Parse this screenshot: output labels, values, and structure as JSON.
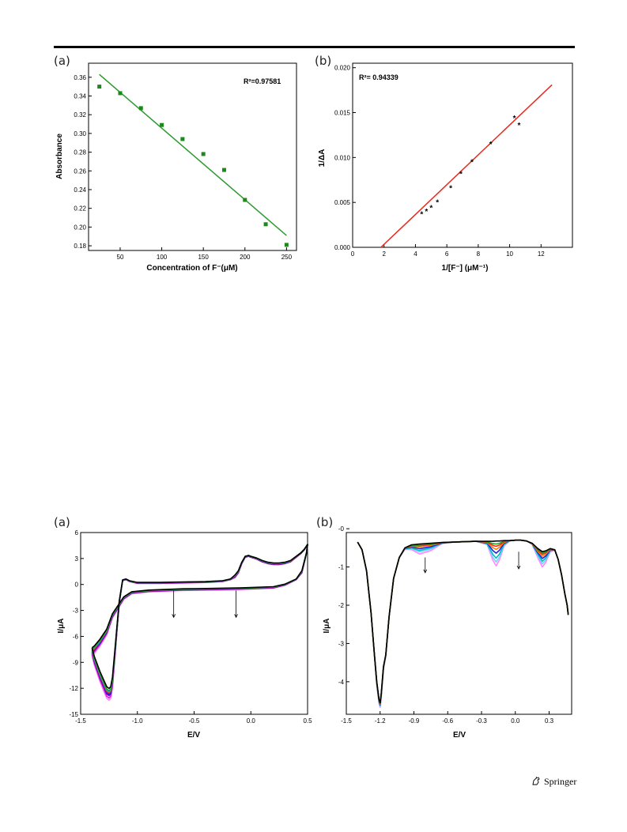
{
  "page": {
    "footer_text": "Springer",
    "panel_labels": [
      "(a)",
      "(b)",
      "(a)",
      "(b)"
    ]
  },
  "chart_data": [
    {
      "type": "scatter",
      "marker": "square",
      "color": "#1a8a1a",
      "line_color": "#2e9a2e",
      "xlabel": "Concentration of F⁻(μM)",
      "ylabel": "Absorbance",
      "annotation": "R²=0.97581",
      "xlim": [
        12,
        262
      ],
      "ylim": [
        0.175,
        0.375
      ],
      "x_ticks": [
        50,
        100,
        150,
        200,
        250
      ],
      "y_ticks": [
        0.18,
        0.2,
        0.22,
        0.24,
        0.26,
        0.28,
        0.3,
        0.32,
        0.34,
        0.36
      ],
      "y_tick_labels": [
        "0.18",
        "0.20",
        "0.22",
        "0.24",
        "0.26",
        "0.28",
        "0.30",
        "0.32",
        "0.34",
        "0.36"
      ],
      "points": {
        "x": [
          25,
          50,
          75,
          100,
          125,
          150,
          175,
          200,
          225,
          250
        ],
        "y": [
          0.35,
          0.343,
          0.327,
          0.309,
          0.294,
          0.278,
          0.261,
          0.229,
          0.203,
          0.181
        ]
      },
      "fit_line": {
        "x": [
          25,
          250
        ],
        "y": [
          0.363,
          0.191
        ]
      }
    },
    {
      "type": "scatter",
      "marker": "star",
      "color": "#e8281e",
      "line_color": "#e8281e",
      "xlabel": "1/[F⁻] (μM⁻¹)",
      "ylabel": "1/ΔA",
      "annotation": "R²= 0.94339",
      "xlim": [
        0,
        14
      ],
      "ylim": [
        0,
        0.0205
      ],
      "x_ticks": [
        0,
        2,
        4,
        6,
        8,
        10,
        12
      ],
      "y_ticks": [
        0,
        0.005,
        0.01,
        0.015,
        0.02
      ],
      "y_tick_labels": [
        "0.000",
        "0.005",
        "0.010",
        "0.015",
        "0.020"
      ],
      "points": {
        "x": [
          4.4,
          4.7,
          5.0,
          5.4,
          6.25,
          6.9,
          7.6,
          8.8,
          10.3,
          10.6
        ],
        "y": [
          0.0037,
          0.004,
          0.0044,
          0.005,
          0.0066,
          0.0082,
          0.0095,
          0.0115,
          0.0144,
          0.0136
        ]
      },
      "fit_line": {
        "x": [
          1.8,
          12.7
        ],
        "y": [
          0,
          0.0181
        ]
      }
    },
    {
      "type": "line",
      "xlabel": "E/V",
      "ylabel": "I/μA",
      "xlim": [
        -1.5,
        0.5
      ],
      "ylim": [
        -15,
        6
      ],
      "x_ticks": [
        -1.5,
        -1.0,
        -0.5,
        0.0,
        0.5
      ],
      "x_tick_labels": [
        "-1.5",
        "-1.0",
        "-0.5",
        "0.0",
        "0.5"
      ],
      "y_ticks": [
        -15,
        -12,
        -9,
        -6,
        -3,
        0,
        3,
        6
      ],
      "arrows": [
        {
          "x": -0.68,
          "y_from": -0.7,
          "y_to": -3.8
        },
        {
          "x": -0.13,
          "y_from": -0.7,
          "y_to": -3.8
        }
      ],
      "base_curve": {
        "x": [
          -1.4,
          -1.38,
          -1.33,
          -1.29,
          -1.27,
          -1.25,
          -1.235,
          -1.22,
          -1.2,
          -1.18,
          -1.16,
          -1.13,
          -1.1,
          -1.07,
          -1.0,
          -0.8,
          -0.6,
          -0.4,
          -0.25,
          -0.18,
          -0.14,
          -0.11,
          -0.08,
          -0.05,
          -0.02,
          0.0,
          0.05,
          0.1,
          0.15,
          0.2,
          0.25,
          0.3,
          0.35,
          0.4,
          0.44,
          0.47,
          0.49,
          0.5,
          0.49,
          0.45,
          0.4,
          0.3,
          0.2,
          0.1,
          0.0,
          -0.1,
          -0.3,
          -0.6,
          -0.9,
          -1.05,
          -1.12,
          -1.17,
          -1.22,
          -1.27,
          -1.33,
          -1.38,
          -1.4
        ],
        "y": [
          -7.5,
          -8.5,
          -10.3,
          -11.5,
          -12.1,
          -12.3,
          -12.1,
          -11.0,
          -8.0,
          -5.0,
          -2.0,
          0.5,
          0.6,
          0.4,
          0.2,
          0.2,
          0.25,
          0.3,
          0.4,
          0.6,
          1.0,
          1.5,
          2.5,
          3.2,
          3.3,
          3.2,
          3.0,
          2.7,
          2.5,
          2.4,
          2.4,
          2.5,
          2.7,
          3.2,
          3.6,
          4.0,
          4.4,
          4.6,
          3.6,
          1.5,
          0.6,
          0.0,
          -0.3,
          -0.35,
          -0.4,
          -0.45,
          -0.5,
          -0.55,
          -0.7,
          -0.9,
          -1.5,
          -2.5,
          -3.5,
          -5.3,
          -6.5,
          -7.3,
          -7.5
        ]
      },
      "series": [
        {
          "color": "#ff88ff",
          "oy": -0.5,
          "ya": 1.08
        },
        {
          "color": "#e020e0",
          "oy": -0.4,
          "ya": 1.06
        },
        {
          "color": "#8000c0",
          "oy": -0.3,
          "ya": 1.04
        },
        {
          "color": "#2020e0",
          "oy": -0.2,
          "ya": 1.03
        },
        {
          "color": "#ff2020",
          "oy": -0.1,
          "ya": 1.02
        },
        {
          "color": "#00c0c0",
          "oy": 0.0,
          "ya": 1.01
        },
        {
          "color": "#20a020",
          "oy": 0.1,
          "ya": 1.0
        },
        {
          "color": "#000000",
          "oy": 0.2,
          "ya": 0.98
        }
      ]
    },
    {
      "type": "line",
      "xlabel": "E/V",
      "ylabel": "I/μA",
      "xlim": [
        -1.5,
        0.5
      ],
      "ylim": [
        -4.85,
        -0.1
      ],
      "x_ticks": [
        -1.5,
        -1.2,
        -0.9,
        -0.6,
        -0.3,
        0.0,
        0.3
      ],
      "x_tick_labels": [
        "-1.5",
        "-1.2",
        "-0.9",
        "-0.6",
        "-0.3",
        "0.0",
        "0.3"
      ],
      "y_ticks": [
        -4,
        -3,
        -2,
        -1,
        0
      ],
      "y_tick_labels": [
        "-4",
        "-3",
        "-2",
        "-1",
        "-0"
      ],
      "arrows": [
        {
          "x": -0.8,
          "y_from": -0.75,
          "y_to": -1.15
        },
        {
          "x": 0.03,
          "y_from": -0.6,
          "y_to": -1.05
        }
      ],
      "base_curve": {
        "x": [
          -1.4,
          -1.36,
          -1.32,
          -1.28,
          -1.25,
          -1.23,
          -1.21,
          -1.2,
          -1.19,
          -1.17,
          -1.15,
          -1.12,
          -1.08,
          -1.03,
          -0.98,
          -0.92,
          -0.85,
          -0.75,
          -0.65,
          -0.55,
          -0.45,
          -0.35,
          -0.25,
          -0.2,
          -0.17,
          -0.14,
          -0.1,
          -0.05,
          0.0,
          0.05,
          0.1,
          0.15,
          0.2,
          0.24,
          0.27,
          0.31,
          0.35,
          0.38,
          0.41,
          0.44,
          0.46,
          0.47
        ],
        "y": [
          -0.35,
          -0.55,
          -1.1,
          -2.2,
          -3.3,
          -4.0,
          -4.45,
          -4.55,
          -4.3,
          -3.6,
          -3.3,
          -2.3,
          -1.3,
          -0.75,
          -0.5,
          -0.42,
          -0.4,
          -0.38,
          -0.36,
          -0.35,
          -0.34,
          -0.33,
          -0.33,
          -0.33,
          -0.32,
          -0.32,
          -0.31,
          -0.31,
          -0.3,
          -0.3,
          -0.32,
          -0.38,
          -0.52,
          -0.6,
          -0.58,
          -0.52,
          -0.55,
          -0.8,
          -1.2,
          -1.7,
          -2.0,
          -2.25
        ]
      },
      "series": [
        {
          "color": "#ff88ff",
          "depth": 0.08,
          "bumps": [
            0.28,
            0.65,
            0.4
          ]
        },
        {
          "color": "#80d0ff",
          "depth": 0.06,
          "bumps": [
            0.22,
            0.55,
            0.32
          ]
        },
        {
          "color": "#00c0c0",
          "depth": 0.05,
          "bumps": [
            0.18,
            0.45,
            0.25
          ]
        },
        {
          "color": "#2020e0",
          "depth": 0.03,
          "bumps": [
            0.13,
            0.32,
            0.18
          ]
        },
        {
          "color": "#ff8000",
          "depth": 0.02,
          "bumps": [
            0.08,
            0.22,
            0.12
          ]
        },
        {
          "color": "#ff2020",
          "depth": 0.01,
          "bumps": [
            0.05,
            0.14,
            0.07
          ]
        },
        {
          "color": "#20a020",
          "depth": 0.005,
          "bumps": [
            0.03,
            0.08,
            0.04
          ]
        },
        {
          "color": "#000000",
          "depth": 0.0,
          "bumps": [
            0.0,
            0.0,
            0.0
          ]
        }
      ]
    }
  ]
}
